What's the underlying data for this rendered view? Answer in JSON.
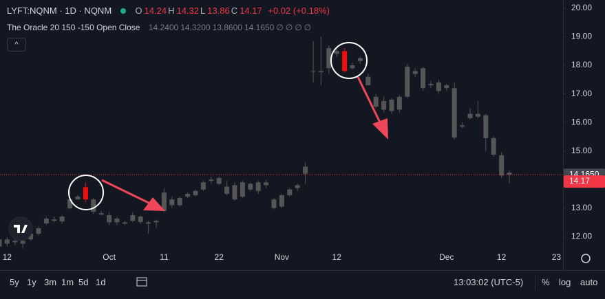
{
  "header": {
    "symbol": "LYFT:NQNM · 1D · NQNM",
    "ohlc": [
      {
        "label": "O",
        "value": 14.24
      },
      {
        "label": "H",
        "value": 14.32
      },
      {
        "label": "L",
        "value": 13.86
      },
      {
        "label": "C",
        "value": 14.17
      }
    ],
    "change": "+0.02 (+0.18%)",
    "indicator": "The Oracle 20 150 -150 Open Close",
    "indicator_values": [
      "14.2400",
      "14.3200",
      "13.8600",
      "14.1650",
      "∅",
      "∅",
      "∅",
      "∅"
    ]
  },
  "chart_data": {
    "type": "candlestick",
    "categories": [
      null,
      "12",
      null,
      null,
      null,
      null,
      null,
      null,
      null,
      null,
      null,
      null,
      null,
      null,
      "Oct",
      null,
      null,
      null,
      null,
      null,
      null,
      "11",
      null,
      null,
      null,
      null,
      null,
      null,
      "22",
      null,
      null,
      null,
      null,
      null,
      null,
      null,
      "Nov",
      null,
      null,
      null,
      null,
      null,
      null,
      "12",
      null,
      null,
      null,
      null,
      null,
      null,
      null,
      null,
      null,
      null,
      null,
      null,
      null,
      "Dec",
      null,
      null,
      null,
      null,
      null,
      null,
      "12",
      null,
      null,
      null,
      null,
      null,
      null,
      "23"
    ],
    "open": [
      11.65,
      11.75,
      11.85,
      11.75,
      11.9,
      12.1,
      12.46,
      12.6,
      12.53,
      12.99,
      13.3,
      13.73,
      13.3,
      12.82,
      12.75,
      12.5,
      12.5,
      12.55,
      12.7,
      12.45,
      12.5,
      12.9,
      13.3,
      13.1,
      13.4,
      13.45,
      13.65,
      13.95,
      14.05,
      13.75,
      13.3,
      13.4,
      13.65,
      13.6,
      13.8,
      13.0,
      13.05,
      13.45,
      13.7,
      14.2,
      17.8,
      17.8,
      17.9,
      18.5,
      18.5,
      17.9,
      18.15,
      17.6,
      16.9,
      16.75,
      16.4,
      16.45,
      16.9,
      17.7,
      17.2,
      17.3,
      17.1,
      17.2,
      17.2,
      15.9,
      16.15,
      16.2,
      16.25,
      15.45,
      14.85,
      14.24,
      null,
      null,
      null,
      null,
      null,
      null
    ],
    "high": [
      11.95,
      11.98,
      11.95,
      11.9,
      12.15,
      12.35,
      12.7,
      12.7,
      12.75,
      13.35,
      13.45,
      13.9,
      13.35,
      12.9,
      12.85,
      12.7,
      12.55,
      12.85,
      12.75,
      12.55,
      12.6,
      13.7,
      13.4,
      13.4,
      13.55,
      13.65,
      13.95,
      14.1,
      14.1,
      13.95,
      13.9,
      13.95,
      13.9,
      13.95,
      13.98,
      13.35,
      13.5,
      13.7,
      13.85,
      14.6,
      18.85,
      19.0,
      18.7,
      18.6,
      18.6,
      18.1,
      18.3,
      17.7,
      17.0,
      16.9,
      16.85,
      16.95,
      18.05,
      17.9,
      17.95,
      17.45,
      17.5,
      17.35,
      17.4,
      16.0,
      16.5,
      16.75,
      16.3,
      15.5,
      14.95,
      14.32,
      null,
      null,
      null,
      null,
      null,
      null
    ],
    "low": [
      11.55,
      11.65,
      11.7,
      11.6,
      11.85,
      12.05,
      12.4,
      12.5,
      12.45,
      12.95,
      13.3,
      13.2,
      12.8,
      12.75,
      12.4,
      12.4,
      12.4,
      12.5,
      12.45,
      12.1,
      12.3,
      12.85,
      13.0,
      13.05,
      13.35,
      13.4,
      13.6,
      13.85,
      13.8,
      13.45,
      13.25,
      13.35,
      13.6,
      13.5,
      13.7,
      12.95,
      13.0,
      13.4,
      13.6,
      13.85,
      17.4,
      17.3,
      17.7,
      18.3,
      17.75,
      17.85,
      18.05,
      17.3,
      16.5,
      16.35,
      16.3,
      16.35,
      16.85,
      17.6,
      17.1,
      17.2,
      17.0,
      17.1,
      15.4,
      15.8,
      16.1,
      16.15,
      15.0,
      14.8,
      14.05,
      13.86,
      null,
      null,
      null,
      null,
      null,
      null
    ],
    "close": [
      11.9,
      11.9,
      11.8,
      11.85,
      12.1,
      12.29,
      12.63,
      12.55,
      12.7,
      13.3,
      13.4,
      13.3,
      12.87,
      12.77,
      12.5,
      12.63,
      12.45,
      12.75,
      12.51,
      12.5,
      12.55,
      13.54,
      13.1,
      13.35,
      13.5,
      13.6,
      13.9,
      14.0,
      13.85,
      13.5,
      13.8,
      13.9,
      13.85,
      13.9,
      13.9,
      13.3,
      13.45,
      13.65,
      13.8,
      14.45,
      17.78,
      17.76,
      18.6,
      18.4,
      17.8,
      18.0,
      18.25,
      17.3,
      16.55,
      16.45,
      16.8,
      16.9,
      17.95,
      17.8,
      17.9,
      17.35,
      17.4,
      17.3,
      15.47,
      15.85,
      16.3,
      16.3,
      15.45,
      14.87,
      14.14,
      14.17,
      null,
      null,
      null,
      null,
      null,
      null
    ],
    "color": "#555555",
    "highlight_indices": [
      11,
      44
    ],
    "highlight_color": "#f20d0d",
    "ylim": [
      11.57,
      20.29
    ],
    "yticks": [
      {
        "value": 12,
        "label": "12.00"
      },
      {
        "value": 13,
        "label": "13.00"
      },
      {
        "value": 14,
        "label": "14.00"
      },
      {
        "value": 15,
        "label": "15.00"
      },
      {
        "value": 16,
        "label": "16.00"
      },
      {
        "value": 17,
        "label": "17.00"
      },
      {
        "value": 18,
        "label": "18.00"
      },
      {
        "value": 19,
        "label": "19.00"
      },
      {
        "value": 20,
        "label": "20.00"
      }
    ],
    "indicator_price": {
      "value": 14.165,
      "label": "14.1650"
    },
    "last_price": 14.17,
    "grid": false
  },
  "toolbar": {
    "ranges": [
      "5y",
      "1y",
      "3m",
      "1m",
      "5d",
      "1d"
    ],
    "clock": "13:03:02 (UTC-5)",
    "percent": "%",
    "log": "log",
    "auto": "auto"
  }
}
